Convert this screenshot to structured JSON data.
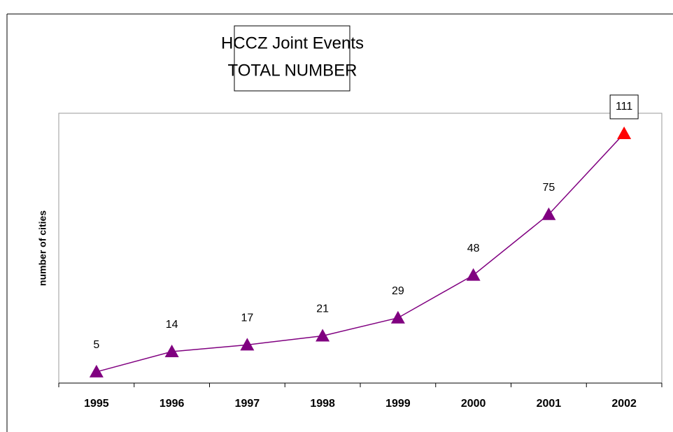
{
  "chart_data": {
    "type": "line",
    "title": [
      "HCCZ Joint Events",
      "TOTAL NUMBER"
    ],
    "y_label": "number of cities",
    "categories": [
      "1995",
      "1996",
      "1997",
      "1998",
      "1999",
      "2000",
      "2001",
      "2002"
    ],
    "series": [
      {
        "name": "number of cities",
        "color": "#800080",
        "values": [
          5,
          14,
          17,
          21,
          29,
          48,
          75,
          111
        ],
        "point_colors": [
          "#800080",
          "#800080",
          "#800080",
          "#800080",
          "#800080",
          "#800080",
          "#800080",
          "#ff0000"
        ],
        "boxed_value_labels": [
          false,
          false,
          false,
          false,
          false,
          false,
          false,
          true
        ]
      }
    ],
    "ylim": [
      0,
      120
    ]
  }
}
